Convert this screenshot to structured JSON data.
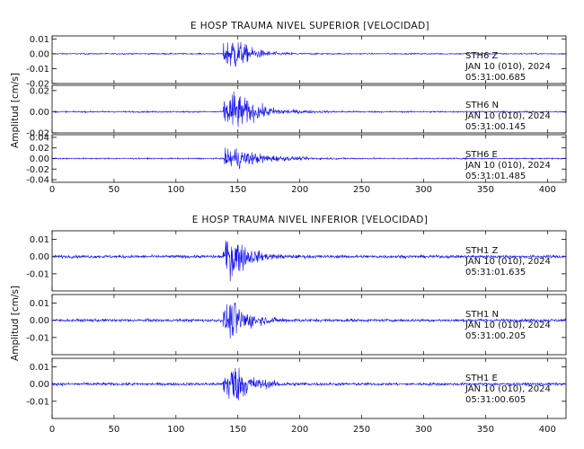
{
  "chart_data": [
    {
      "type": "line",
      "title": "E HOSP TRAUMA NIVEL SUPERIOR [VELOCIDAD]",
      "ylabel": "Amplitud [cm/s]",
      "xlabel": "",
      "xlim": [
        0,
        415
      ],
      "xticks": [
        "0",
        "50",
        "100",
        "150",
        "200",
        "250",
        "300",
        "350",
        "400"
      ],
      "line_color": "#1010ee",
      "panels": [
        {
          "station": "STH6",
          "component": "Z",
          "date": "JAN 10 (010), 2024",
          "time": "05:31:00.685",
          "ylim": [
            -0.02,
            0.012
          ],
          "yticks": [
            "0.01",
            "0.00",
            "-0.01",
            "-0.02"
          ],
          "noise": 0.00042,
          "onset": 138,
          "peak": 0.0125,
          "decay": 13
        },
        {
          "station": "STH6",
          "component": "N",
          "date": "JAN 10 (010), 2024",
          "time": "05:31:00.145",
          "ylim": [
            -0.02,
            0.025
          ],
          "yticks": [
            "0.02",
            "0.00",
            "-0.02"
          ],
          "noise": 0.0007,
          "onset": 138,
          "peak": 0.02,
          "decay": 18
        },
        {
          "station": "STH6",
          "component": "E",
          "date": "JAN 10 (010), 2024",
          "time": "05:31:01.485",
          "ylim": [
            -0.045,
            0.045
          ],
          "yticks": [
            "0.04",
            "0.02",
            "0.00",
            "-0.02",
            "-0.04"
          ],
          "noise": 0.0012,
          "onset": 138,
          "peak": 0.022,
          "decay": 22
        }
      ]
    },
    {
      "type": "line",
      "title": "E HOSP TRAUMA NIVEL INFERIOR [VELOCIDAD]",
      "ylabel": "Amplitud [cm/s]",
      "xlabel": "",
      "xlim": [
        0,
        415
      ],
      "xticks": [
        "0",
        "50",
        "100",
        "150",
        "200",
        "250",
        "300",
        "350",
        "400"
      ],
      "line_color": "#1010ee",
      "panels": [
        {
          "station": "STH1",
          "component": "Z",
          "date": "JAN 10 (010), 2024",
          "time": "05:31:01.635",
          "ylim": [
            -0.02,
            0.015
          ],
          "yticks": [
            "0.01",
            "0.00",
            "-0.01"
          ],
          "noise": 0.00085,
          "onset": 138,
          "peak": 0.013,
          "decay": 12
        },
        {
          "station": "STH1",
          "component": "N",
          "date": "JAN 10 (010), 2024",
          "time": "05:31:00.205",
          "ylim": [
            -0.02,
            0.015
          ],
          "yticks": [
            "0.01",
            "0.00",
            "-0.01"
          ],
          "noise": 0.0008,
          "onset": 138,
          "peak": 0.011,
          "decay": 13
        },
        {
          "station": "STH1",
          "component": "E",
          "date": "JAN 10 (010), 2024",
          "time": "05:31:00.605",
          "ylim": [
            -0.02,
            0.015
          ],
          "yticks": [
            "0.01",
            "0.00",
            "-0.01"
          ],
          "noise": 0.0008,
          "onset": 138,
          "peak": 0.013,
          "decay": 13
        }
      ]
    }
  ]
}
